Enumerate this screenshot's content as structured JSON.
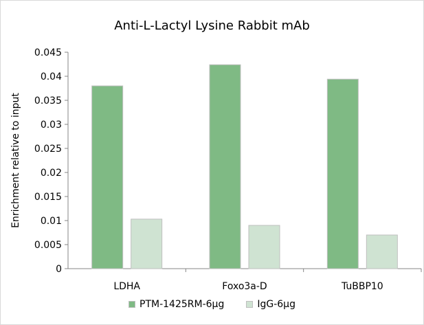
{
  "chart_data": {
    "type": "bar",
    "title": "Anti-L-Lactyl Lysine Rabbit mAb",
    "ylabel": "Enrichment relative to input",
    "xlabel": "",
    "categories": [
      "LDHA",
      "Foxo3a-D",
      "TuBBP10"
    ],
    "series": [
      {
        "name": "PTM-1425RM-6μg",
        "values": [
          0.038,
          0.0424,
          0.0394
        ],
        "color": "#7fba84"
      },
      {
        "name": "IgG-6μg",
        "values": [
          0.0103,
          0.009,
          0.007
        ],
        "color": "#cfe3d2"
      }
    ],
    "ylim": [
      0,
      0.045
    ],
    "yticks": [
      "0",
      "0.005",
      "0.01",
      "0.015",
      "0.02",
      "0.025",
      "0.03",
      "0.035",
      "0.04",
      "0.045"
    ],
    "grid": false,
    "legend_position": "bottom"
  }
}
